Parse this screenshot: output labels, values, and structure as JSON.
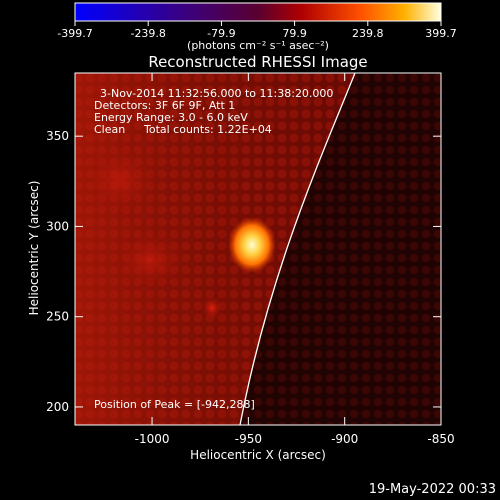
{
  "colorbar": {
    "ticks": [
      "-399.7",
      "-239.8",
      "-79.9",
      "79.9",
      "239.8",
      "399.7"
    ],
    "tick_values": [
      -399.7,
      -239.8,
      -79.9,
      79.9,
      239.8,
      399.7
    ],
    "range": [
      -399.7,
      399.7
    ],
    "units": "(photons cm⁻² s⁻¹ asec⁻²)"
  },
  "plot": {
    "title": "Reconstructed RHESSI Image",
    "info_line1": "3-Nov-2014 11:32:56.000 to 11:38:20.000",
    "info_line2": "Detectors: 3F 6F 9F, Att 1",
    "info_line3": "Energy Range: 3.0 - 6.0 keV",
    "info_line4_a": "Clean",
    "info_line4_b": "Total counts: 1.22E+04",
    "peak": "Position of Peak = [-942,288]",
    "x_label": "Heliocentric X (arcsec)",
    "y_label": "Heliocentric Y (arcsec)",
    "x_range": [
      -1040,
      -850
    ],
    "y_range": [
      190,
      385
    ],
    "x_ticks": [
      "-1000",
      "-950",
      "-900",
      "-850"
    ],
    "x_tick_values": [
      -1000,
      -950,
      -900,
      -850
    ],
    "y_ticks": [
      "200",
      "250",
      "300",
      "350"
    ],
    "y_tick_values": [
      200,
      250,
      300,
      350
    ]
  },
  "timestamp": "19-May-2022 00:33"
}
